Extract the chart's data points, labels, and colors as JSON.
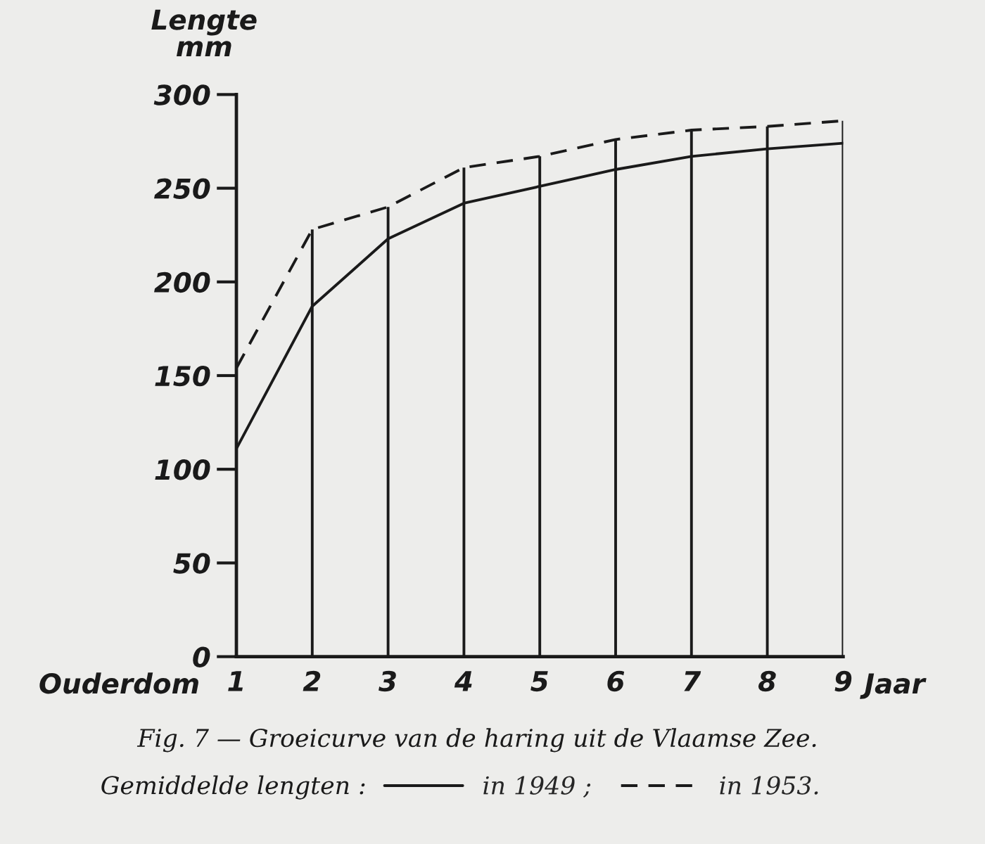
{
  "chart_data": {
    "type": "line",
    "title": "Fig. 7 — Groeicurve van de haring uit de Vlaamse Zee.",
    "xlabel": "Ouderdom",
    "ylabel": "Lengte\nmm",
    "legend_title": "Gemiddelde lengten :",
    "annotations": [
      "Jaar"
    ],
    "x": [
      1,
      2,
      3,
      4,
      5,
      6,
      7,
      8,
      9
    ],
    "xlim": [
      1,
      9
    ],
    "xticks": [
      1,
      2,
      3,
      4,
      5,
      6,
      7,
      8,
      9
    ],
    "ylim": [
      0,
      300
    ],
    "yticks": [
      0,
      50,
      100,
      150,
      200,
      250,
      300
    ],
    "grid": "x",
    "legend": "bottom",
    "series": [
      {
        "name": "in 1949 ;",
        "color": "#1a1a1a",
        "line_style": "solid",
        "values": [
          111,
          187,
          223,
          242,
          251,
          260,
          267,
          271,
          274
        ]
      },
      {
        "name": "in 1953.",
        "color": "#1a1a1a",
        "line_style": "dashed",
        "values": [
          154,
          228,
          240,
          261,
          267,
          276,
          281,
          283,
          286
        ]
      }
    ]
  }
}
